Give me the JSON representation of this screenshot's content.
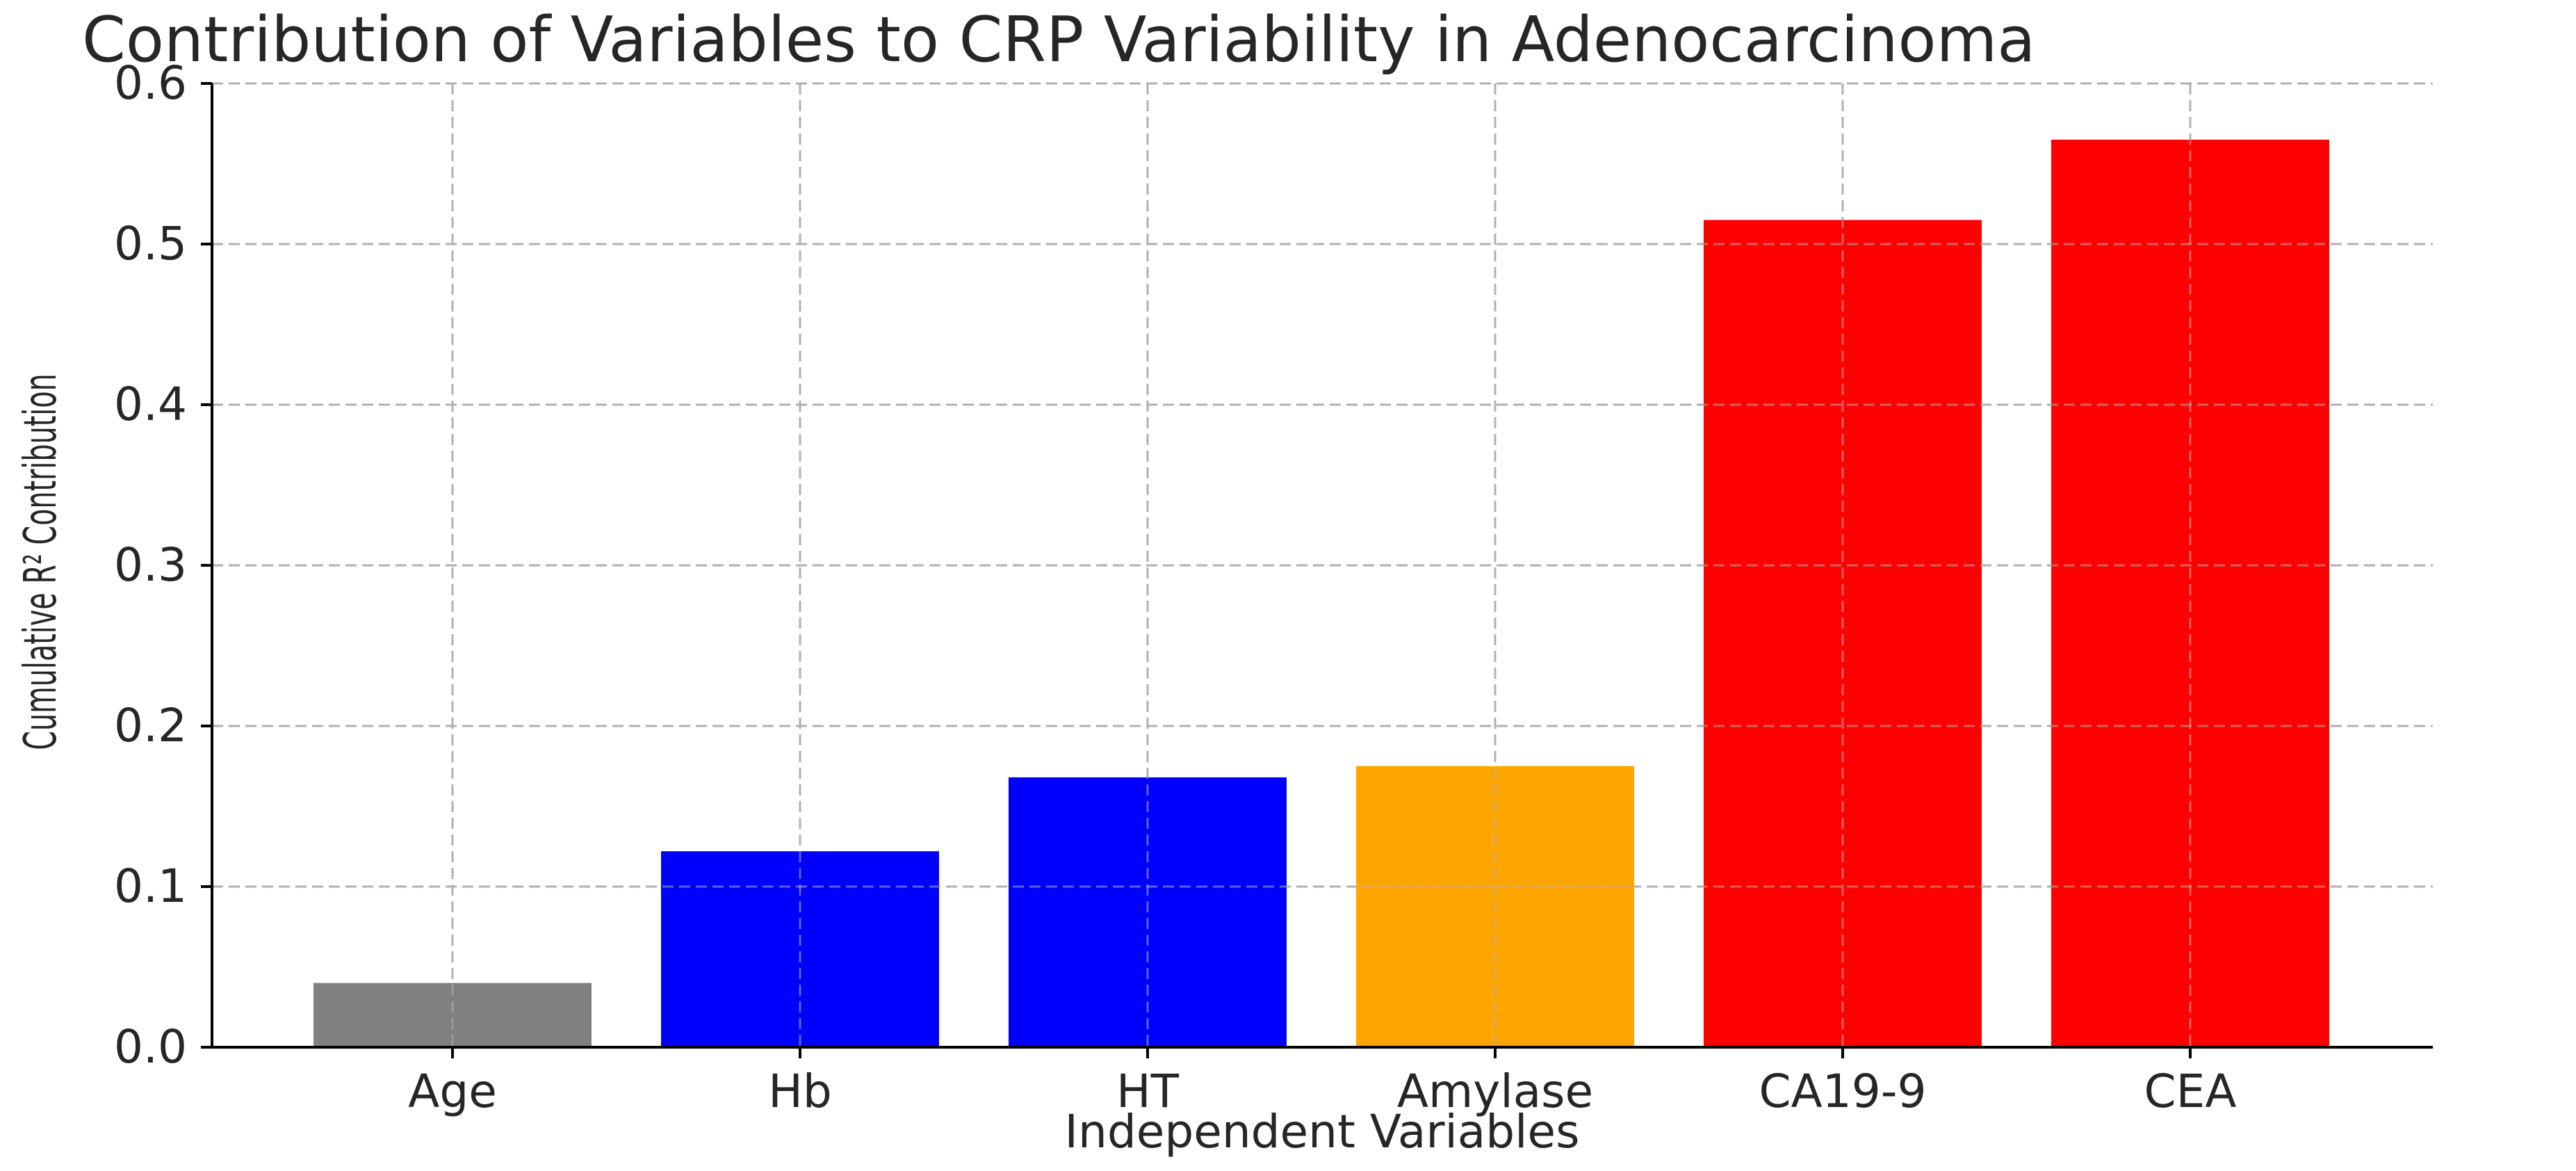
{
  "chart_data": {
    "type": "bar",
    "title": "Contribution of Variables to CRP Variability in Adenocarcinoma",
    "xlabel": "Independent Variables",
    "ylabel": "Cumulative R² Contribution",
    "categories": [
      "Age",
      "Hb",
      "HT",
      "Amylase",
      "CA19-9",
      "CEA"
    ],
    "values": [
      0.04,
      0.122,
      0.168,
      0.175,
      0.515,
      0.565
    ],
    "colors": [
      "#808080",
      "#0000ff",
      "#0000ff",
      "#ffa500",
      "#ff0000",
      "#ff0000"
    ],
    "ylim": [
      0,
      0.6
    ],
    "yticks": [
      "0.0",
      "0.1",
      "0.2",
      "0.3",
      "0.4",
      "0.5",
      "0.6"
    ],
    "grid": true
  }
}
